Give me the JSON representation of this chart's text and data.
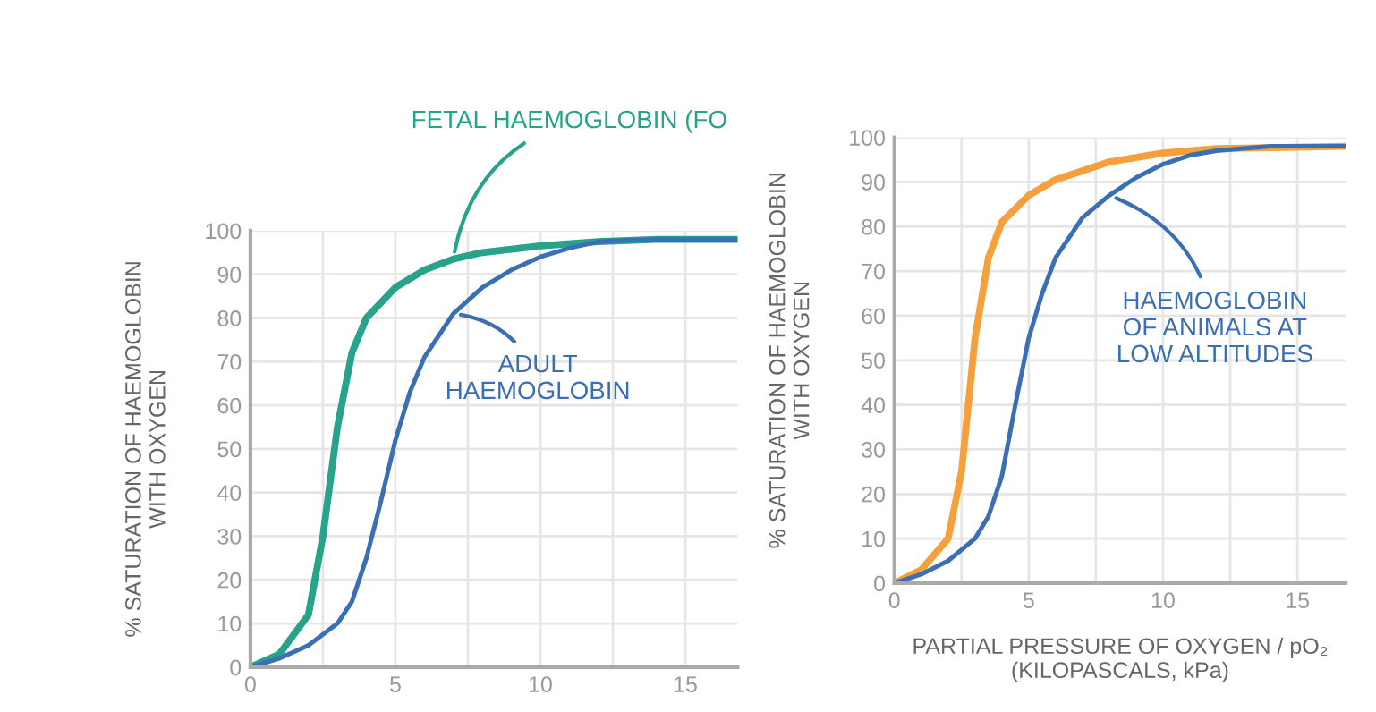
{
  "chart_data": [
    {
      "type": "line",
      "xlim": [
        0,
        16.8
      ],
      "ylim": [
        0,
        100
      ],
      "xticks": [
        0,
        {
          "value": 2.5,
          "label": null
        },
        5,
        {
          "value": 7.5,
          "label": null
        },
        10,
        {
          "value": 12.5,
          "label": null
        },
        15
      ],
      "yticks": [
        0,
        10,
        20,
        30,
        40,
        50,
        60,
        70,
        80,
        90,
        100
      ],
      "ylabel": "% SATURATION OF HAEMOGLOBIN\nWITH OXYGEN",
      "grid": true,
      "marker": "none",
      "line_style": "solid",
      "series": [
        {
          "name": "FETAL HAEMOGLOBIN (FO",
          "color": "#26a38a",
          "x": [
            0,
            1,
            2,
            2.5,
            3,
            3.5,
            4,
            5,
            6,
            7,
            8,
            10,
            12,
            14,
            16.8
          ],
          "values": [
            0,
            3,
            12,
            30,
            55,
            72,
            80,
            87,
            91,
            93.5,
            95,
            96.5,
            97.5,
            98,
            98
          ]
        },
        {
          "name": "ADULT\nHAEMOGLOBIN",
          "color": "#3a6fb5",
          "x": [
            0,
            1,
            2,
            3,
            3.5,
            4,
            4.5,
            5,
            5.5,
            6,
            7,
            8,
            9,
            10,
            11,
            12,
            14,
            16.8
          ],
          "values": [
            0,
            2,
            5,
            10,
            15,
            25,
            38,
            52,
            63,
            71,
            81,
            87,
            91,
            94,
            96,
            97.5,
            98,
            98
          ]
        }
      ]
    },
    {
      "type": "line",
      "xlim": [
        0,
        16.8
      ],
      "ylim": [
        0,
        100
      ],
      "xticks": [
        0,
        {
          "value": 2.5,
          "label": null
        },
        5,
        {
          "value": 7.5,
          "label": null
        },
        10,
        {
          "value": 12.5,
          "label": null
        },
        15
      ],
      "yticks": [
        0,
        10,
        20,
        30,
        40,
        50,
        60,
        70,
        80,
        90,
        100
      ],
      "xlabel": "PARTIAL PRESSURE OF OXYGEN / pO₂\n(KILOPASCALS, kPa)",
      "ylabel": "% SATURATION OF HAEMOGLOBIN\nWITH OXYGEN",
      "grid": true,
      "marker": "none",
      "line_style": "solid",
      "series": [
        {
          "color": "#f5a03a",
          "x": [
            0,
            1,
            2,
            2.5,
            3,
            3.5,
            4,
            5,
            6,
            8,
            10,
            12,
            16.8
          ],
          "values": [
            0,
            3,
            10,
            25,
            55,
            73,
            81,
            87,
            90.5,
            94.5,
            96.5,
            97.5,
            98
          ]
        },
        {
          "name": "HAEMOGLOBIN\nOF ANIMALS AT\nLOW ALTITUDES",
          "color": "#3a6fb5",
          "x": [
            0,
            1,
            2,
            3,
            3.5,
            4,
            4.5,
            5,
            5.5,
            6,
            7,
            8,
            9,
            10,
            11,
            12,
            14,
            16.8
          ],
          "values": [
            0,
            2,
            5,
            10,
            15,
            24,
            40,
            55,
            65,
            73,
            82,
            87,
            91,
            94,
            96,
            97,
            98,
            98
          ]
        }
      ]
    }
  ]
}
